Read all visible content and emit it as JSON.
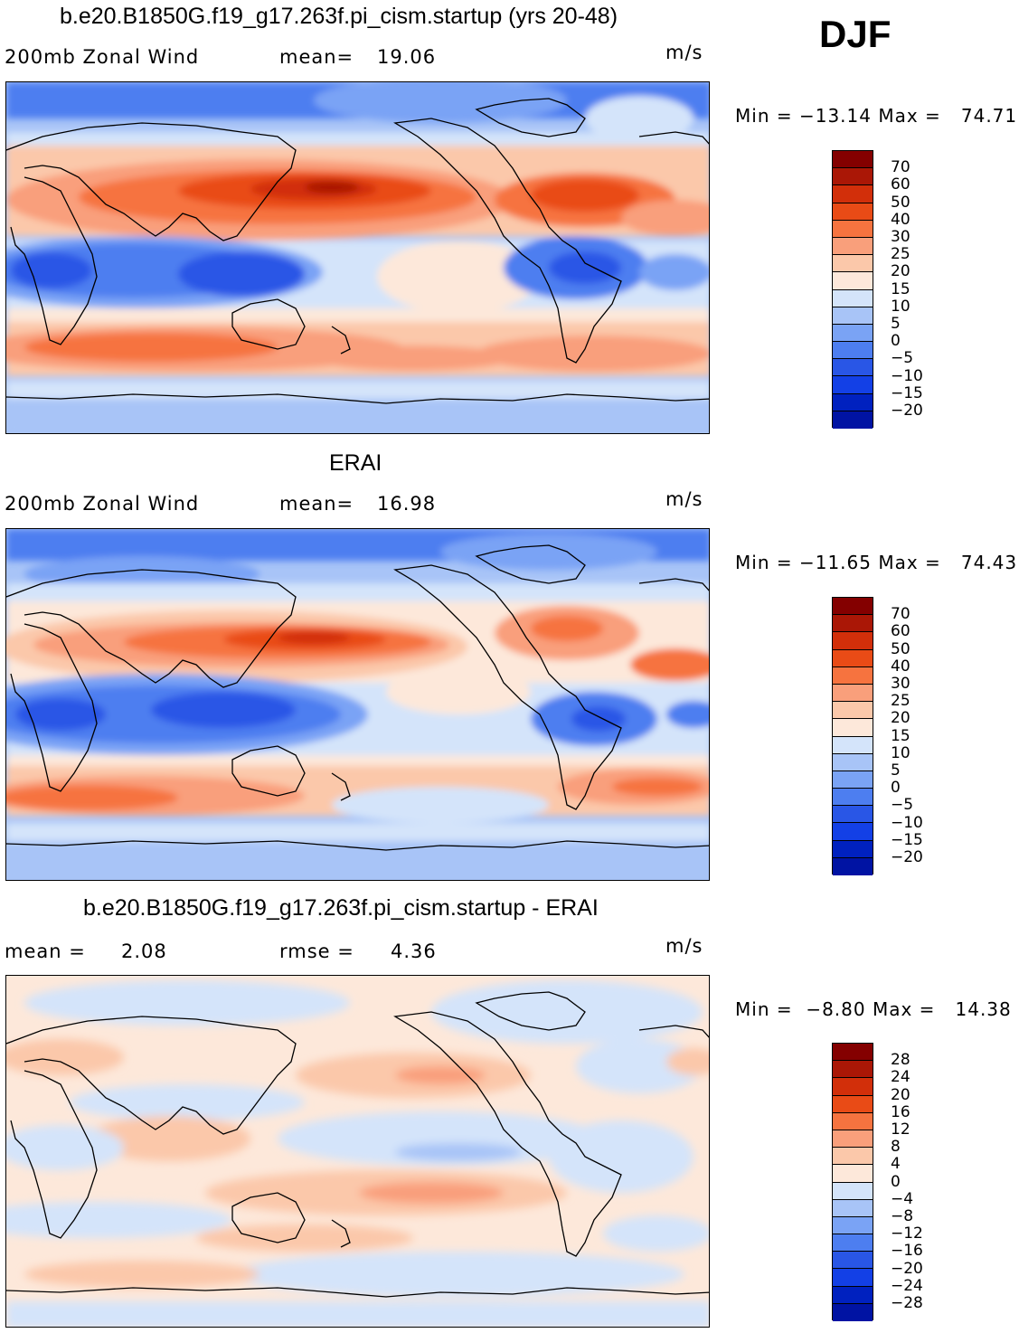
{
  "season": "DJF",
  "units": "m/s",
  "palette_wind": [
    "#00008a",
    "#0013a3",
    "#0021bf",
    "#1340e6",
    "#2956e6",
    "#4d7ef0",
    "#7aa3f5",
    "#a8c4f7",
    "#d4e4fa",
    "#fde8da",
    "#fbc8aa",
    "#f99f7b",
    "#f6733f",
    "#e94b16",
    "#d22f0a",
    "#aa1706",
    "#840000"
  ],
  "palette_diff": [
    "#00008a",
    "#0013a3",
    "#0021bf",
    "#1340e6",
    "#2956e6",
    "#4d7ef0",
    "#7aa3f5",
    "#a8c4f7",
    "#d4e4fa",
    "#fde8da",
    "#fbc8aa",
    "#f99f7b",
    "#f6733f",
    "#e94b16",
    "#d22f0a",
    "#aa1706",
    "#840000"
  ],
  "chart_data": [
    {
      "type": "heatmap",
      "title": "b.e20.B1850G.f19_g17.263f.pi_cism.startup (yrs 20-48)",
      "variable": "200mb Zonal Wind",
      "mean_label": "mean=",
      "mean": "19.06",
      "units": "m/s",
      "min_max": "Min = −13.14 Max =   74.71",
      "min": -13.14,
      "max": 74.71,
      "colorbar_levels": [
        "70",
        "60",
        "50",
        "40",
        "30",
        "25",
        "20",
        "15",
        "10",
        "5",
        "0",
        "−5",
        "−10",
        "−15",
        "−20"
      ],
      "x_range_deg_lon": [
        0,
        360
      ],
      "y_range_deg_lat": [
        -90,
        90
      ]
    },
    {
      "type": "heatmap",
      "title": "ERAI",
      "variable": "200mb Zonal Wind",
      "mean_label": "mean=",
      "mean": "16.98",
      "units": "m/s",
      "min_max": "Min = −11.65 Max =   74.43",
      "min": -11.65,
      "max": 74.43,
      "colorbar_levels": [
        "70",
        "60",
        "50",
        "40",
        "30",
        "25",
        "20",
        "15",
        "10",
        "5",
        "0",
        "−5",
        "−10",
        "−15",
        "−20"
      ],
      "x_range_deg_lon": [
        0,
        360
      ],
      "y_range_deg_lat": [
        -90,
        90
      ]
    },
    {
      "type": "heatmap",
      "title": "b.e20.B1850G.f19_g17.263f.pi_cism.startup - ERAI",
      "mean_label": "mean =",
      "mean": "2.08",
      "rmse_label": "rmse =",
      "rmse": "4.36",
      "units": "m/s",
      "min_max": "Min =  −8.80 Max =   14.38",
      "min": -8.8,
      "max": 14.38,
      "colorbar_levels": [
        "28",
        "24",
        "20",
        "16",
        "12",
        "8",
        "4",
        "0",
        "−4",
        "−8",
        "−12",
        "−16",
        "−20",
        "−24",
        "−28"
      ],
      "x_range_deg_lon": [
        0,
        360
      ],
      "y_range_deg_lat": [
        -90,
        90
      ]
    }
  ]
}
